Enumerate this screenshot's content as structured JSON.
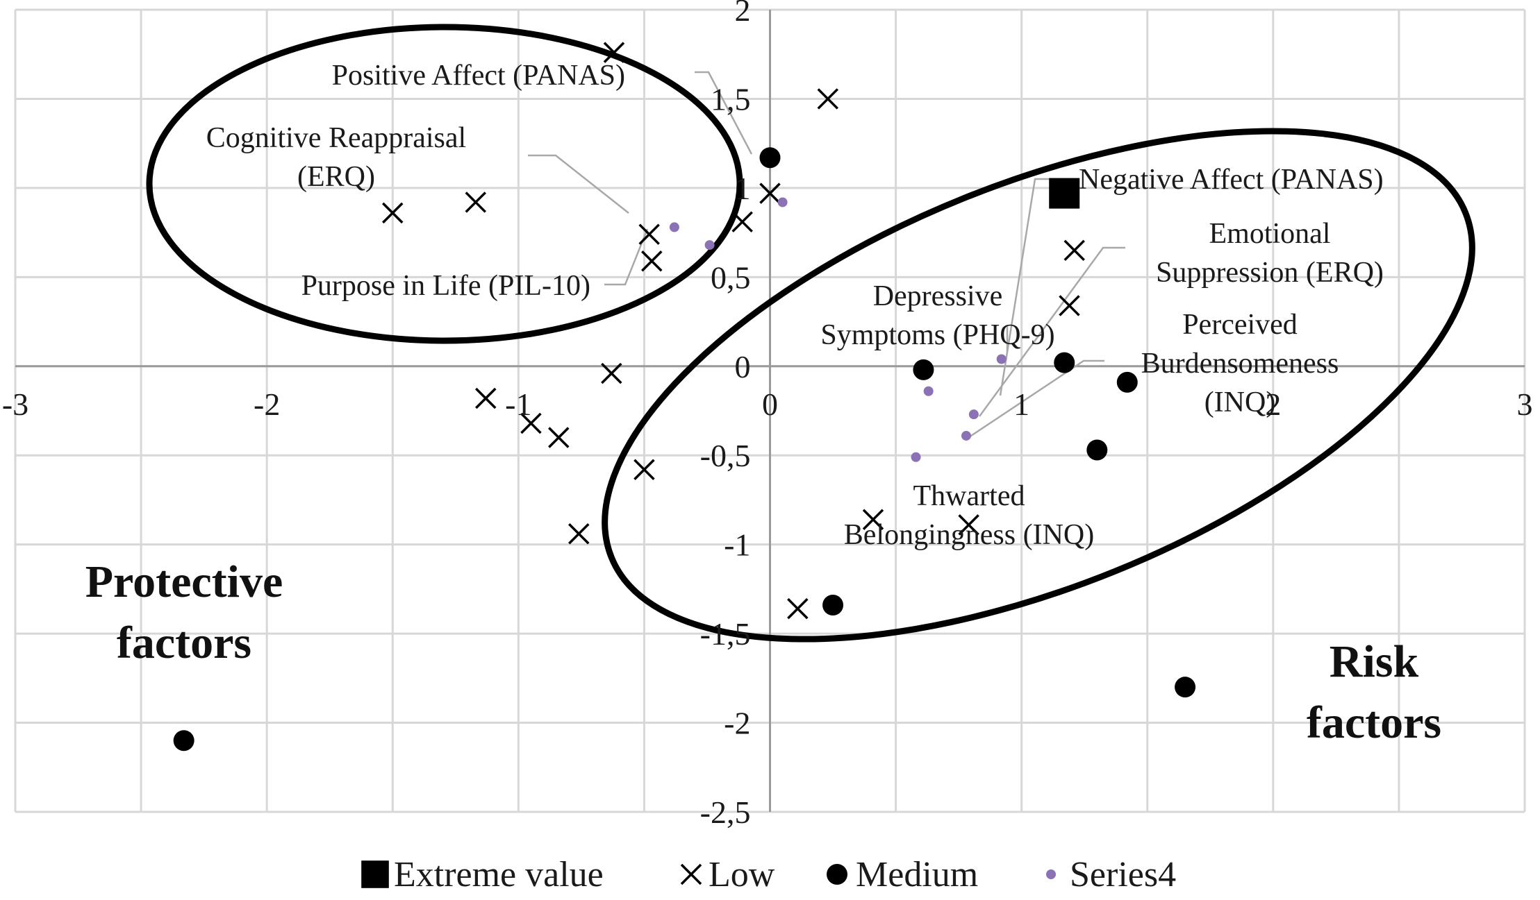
{
  "chart_data": {
    "type": "scatter",
    "title": "",
    "xlabel": "",
    "ylabel": "",
    "xlim": [
      -3,
      3
    ],
    "ylim": [
      -2.5,
      2
    ],
    "x_ticks": [
      "-3",
      "-2",
      "-1",
      "0",
      "1",
      "2",
      "3"
    ],
    "y_ticks": [
      "-2,5",
      "-2",
      "-1,5",
      "-1",
      "-0,5",
      "0",
      "0,5",
      "1",
      "1,5",
      "2"
    ],
    "grid": true,
    "legend_position": "bottom",
    "series": [
      {
        "name": "Extreme value",
        "marker": "square",
        "color": "#000000",
        "points": [
          [
            1.17,
            0.97
          ]
        ]
      },
      {
        "name": "Low",
        "marker": "x",
        "color": "#000000",
        "points": [
          [
            -0.62,
            1.76
          ],
          [
            0.23,
            1.5
          ],
          [
            -1.5,
            0.86
          ],
          [
            -1.17,
            0.92
          ],
          [
            -0.48,
            0.74
          ],
          [
            -0.47,
            0.59
          ],
          [
            -0.11,
            0.81
          ],
          [
            0.0,
            0.97
          ],
          [
            1.21,
            0.65
          ],
          [
            1.19,
            0.34
          ],
          [
            -0.63,
            -0.04
          ],
          [
            -1.13,
            -0.18
          ],
          [
            -0.95,
            -0.32
          ],
          [
            -0.84,
            -0.4
          ],
          [
            -0.5,
            -0.58
          ],
          [
            -0.76,
            -0.94
          ],
          [
            0.41,
            -0.86
          ],
          [
            0.79,
            -0.89
          ],
          [
            0.11,
            -1.36
          ]
        ]
      },
      {
        "name": "Medium",
        "marker": "circle",
        "color": "#000000",
        "points": [
          [
            0.0,
            1.17
          ],
          [
            0.61,
            -0.02
          ],
          [
            1.17,
            0.02
          ],
          [
            1.42,
            -0.09
          ],
          [
            1.3,
            -0.47
          ],
          [
            0.25,
            -1.34
          ],
          [
            1.65,
            -1.8
          ],
          [
            -2.33,
            -2.1
          ]
        ]
      },
      {
        "name": "Series4",
        "marker": "dot",
        "color": "#8a72b5",
        "points": [
          [
            0.05,
            0.92
          ],
          [
            -0.38,
            0.78
          ],
          [
            -0.24,
            0.68
          ],
          [
            0.92,
            0.04
          ],
          [
            0.63,
            -0.14
          ],
          [
            0.81,
            -0.27
          ],
          [
            0.78,
            -0.39
          ],
          [
            0.58,
            -0.51
          ]
        ]
      }
    ],
    "annotations": [
      {
        "lines": [
          "Positive Affect (PANAS)"
        ],
        "anchor": [
          0.05,
          0.92
        ]
      },
      {
        "lines": [
          "Cognitive Reappraisal",
          "(ERQ)"
        ],
        "anchor": [
          -0.38,
          0.78
        ]
      },
      {
        "lines": [
          "Purpose in Life (PIL-10)"
        ],
        "anchor": [
          -0.24,
          0.68
        ]
      },
      {
        "lines": [
          "Negative Affect (PANAS)"
        ],
        "anchor": [
          0.63,
          -0.14
        ]
      },
      {
        "lines": [
          "Emotional",
          "Suppression (ERQ)"
        ],
        "anchor": [
          0.81,
          -0.27
        ]
      },
      {
        "lines": [
          "Depressive",
          "Symptoms  (PHQ-9)"
        ],
        "anchor": [
          0.92,
          0.04
        ]
      },
      {
        "lines": [
          "Perceived",
          "Burdensomeness",
          "(INQ)"
        ],
        "anchor": [
          0.78,
          -0.39
        ]
      },
      {
        "lines": [
          "Thwarted",
          "Belongingness (INQ)"
        ],
        "anchor": null
      }
    ],
    "group_labels": [
      {
        "lines": [
          "Protective",
          "factors"
        ]
      },
      {
        "lines": [
          "Risk",
          "factors"
        ]
      }
    ]
  }
}
